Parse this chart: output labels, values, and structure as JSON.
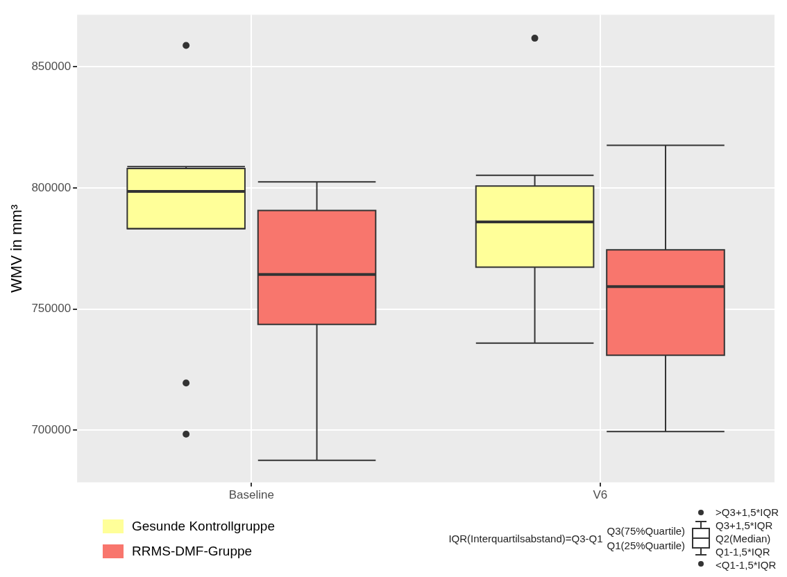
{
  "chart_data": {
    "type": "box",
    "ylabel": "WMV in mm³",
    "categories": [
      "Baseline",
      "V6"
    ],
    "series": [
      {
        "name": "Gesunde Kontrollgruppe",
        "color": "#ffff99",
        "boxes": [
          {
            "low": 783200,
            "q1": 783200,
            "median": 798600,
            "q3": 808000,
            "high": 808800,
            "outliers": [
              858800,
              719500,
              698400
            ]
          },
          {
            "low": 736000,
            "q1": 767300,
            "median": 786000,
            "q3": 800800,
            "high": 805200,
            "outliers": [
              861800
            ]
          }
        ]
      },
      {
        "name": "RRMS-DMF-Gruppe",
        "color": "#f8766d",
        "boxes": [
          {
            "low": 687600,
            "q1": 743700,
            "median": 764300,
            "q3": 790700,
            "high": 802500
          },
          {
            "low": 699500,
            "q1": 731000,
            "median": 759300,
            "q3": 774500,
            "high": 817600
          }
        ]
      }
    ],
    "ylim": [
      678500,
      871500
    ],
    "yticks": [
      700000,
      750000,
      800000,
      850000
    ],
    "grid": true,
    "legend": "bottom left",
    "annotations": [
      "IQR(Interquartilsabstand)=Q3-Q1",
      "Q3(75%Quartile)",
      "Q1(25%Quartile)",
      ">Q3+1,5*IQR",
      "Q3+1,5*IQR",
      "Q2(Median)",
      "Q1-1,5*IQR",
      "<Q1-1,5*IQR"
    ]
  }
}
